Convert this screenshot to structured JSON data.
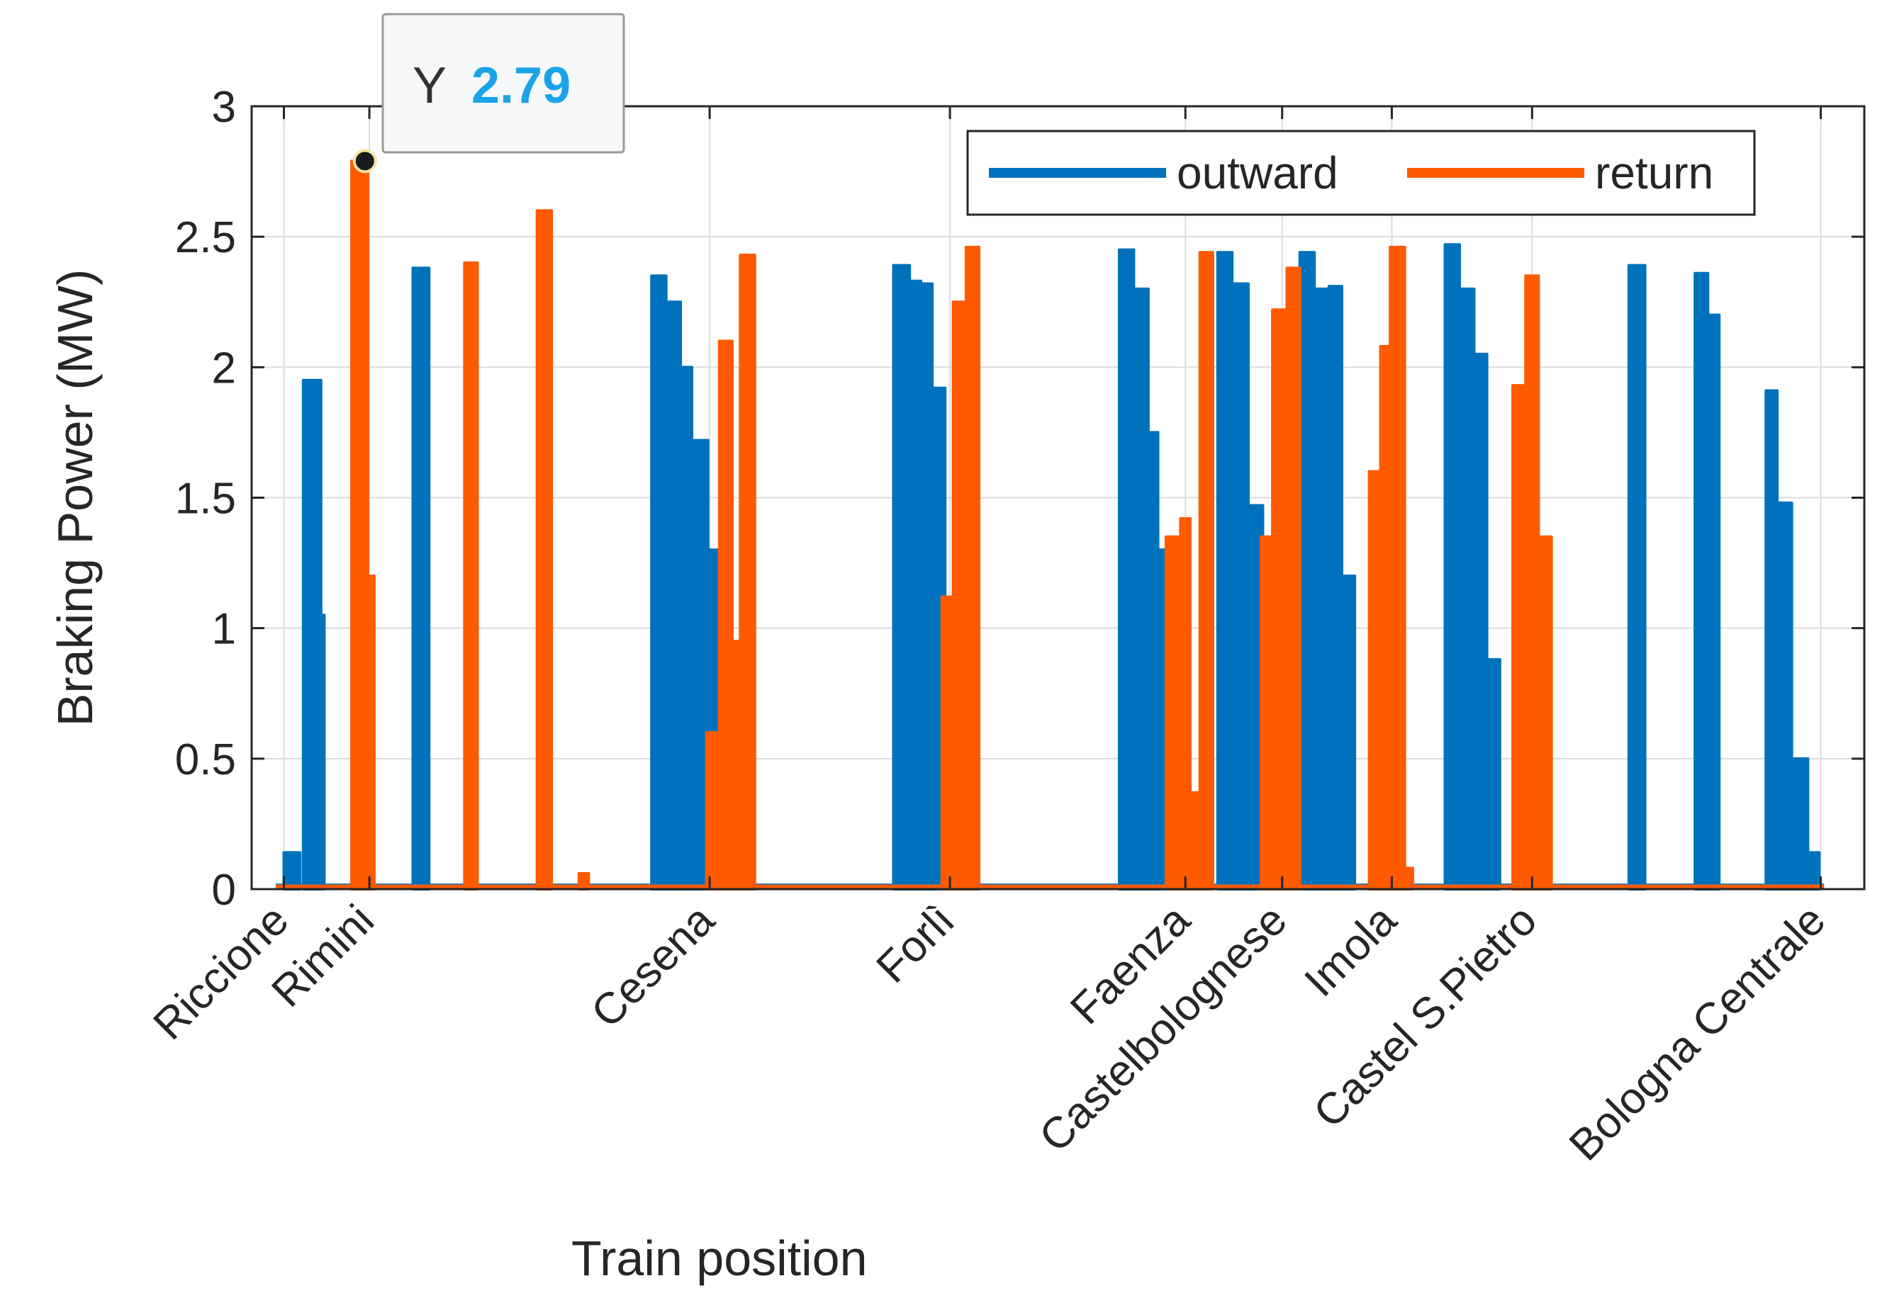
{
  "chart_data": {
    "type": "area",
    "title": "",
    "xlabel": "Train position",
    "ylabel": "Braking Power (MW)",
    "xlim": [
      0,
      100
    ],
    "ylim": [
      0,
      3
    ],
    "yticks": [
      0,
      0.5,
      1,
      1.5,
      2,
      2.5,
      3
    ],
    "ytick_labels": [
      "0",
      "0.5",
      "1",
      "1.5",
      "2",
      "2.5",
      "3"
    ],
    "grid": true,
    "legend_position": "top-right",
    "station_ticks": [
      {
        "label": "Riccione",
        "x": 2
      },
      {
        "label": "Rimini",
        "x": 7.3
      },
      {
        "label": "Cesena",
        "x": 28.4
      },
      {
        "label": "Forlì",
        "x": 43.3
      },
      {
        "label": "Faenza",
        "x": 57.9
      },
      {
        "label": "Castelbolognese",
        "x": 63.9
      },
      {
        "label": "Imola",
        "x": 70.7
      },
      {
        "label": "Castel S.Pietro",
        "x": 79.4
      },
      {
        "label": "Bologna Centrale",
        "x": 97.3
      }
    ],
    "series": [
      {
        "name": "outward",
        "color": "#0072BD",
        "pulses": [
          [
            2,
            3,
            0.14
          ],
          [
            3.2,
            4.3,
            1.95
          ],
          [
            4.3,
            4.5,
            1.05
          ],
          [
            6.2,
            7,
            2.6
          ],
          [
            10,
            11,
            2.38
          ],
          [
            24.8,
            25.7,
            2.35
          ],
          [
            25.7,
            26.6,
            2.25
          ],
          [
            26.6,
            27.3,
            2.0
          ],
          [
            27.3,
            28.3,
            1.72
          ],
          [
            28.3,
            29,
            1.3
          ],
          [
            39.8,
            40.8,
            2.39
          ],
          [
            40.8,
            41.5,
            2.33
          ],
          [
            41.5,
            42.2,
            2.32
          ],
          [
            42.2,
            43,
            1.92
          ],
          [
            53.8,
            54.7,
            2.45
          ],
          [
            54.7,
            55.6,
            2.3
          ],
          [
            55.6,
            56.2,
            1.75
          ],
          [
            56.2,
            57,
            1.3
          ],
          [
            59.9,
            60.8,
            2.44
          ],
          [
            60.8,
            61.8,
            2.32
          ],
          [
            61.8,
            62.7,
            1.47
          ],
          [
            65,
            65.9,
            2.44
          ],
          [
            65.9,
            66.8,
            2.3
          ],
          [
            66.8,
            67.6,
            2.31
          ],
          [
            67.6,
            68.4,
            1.2
          ],
          [
            74,
            74.9,
            2.47
          ],
          [
            74.9,
            75.8,
            2.3
          ],
          [
            75.8,
            76.6,
            2.05
          ],
          [
            76.6,
            77.4,
            0.88
          ],
          [
            85.4,
            86.4,
            2.39
          ],
          [
            89.5,
            90.3,
            2.36
          ],
          [
            90.3,
            91,
            2.2
          ],
          [
            93.9,
            94.6,
            1.91
          ],
          [
            94.6,
            95.5,
            1.48
          ],
          [
            95.5,
            96.5,
            0.5
          ],
          [
            96.5,
            97.2,
            0.14
          ]
        ]
      },
      {
        "name": "return",
        "color": "#FF5A00",
        "pulses": [
          [
            6.2,
            7.2,
            2.79
          ],
          [
            7.2,
            7.6,
            1.2
          ],
          [
            13.2,
            14,
            2.4
          ],
          [
            17.7,
            18.6,
            2.6
          ],
          [
            20.3,
            20.9,
            0.06
          ],
          [
            28.2,
            29,
            0.6
          ],
          [
            29,
            29.8,
            2.1
          ],
          [
            29.8,
            30.3,
            0.95
          ],
          [
            30.3,
            31.2,
            2.43
          ],
          [
            42.8,
            43.5,
            1.12
          ],
          [
            43.5,
            44.3,
            2.25
          ],
          [
            44.3,
            45.1,
            2.46
          ],
          [
            56.7,
            57.6,
            1.35
          ],
          [
            57.6,
            58.2,
            1.42
          ],
          [
            58.2,
            58.8,
            0.37
          ],
          [
            58.8,
            59.6,
            2.44
          ],
          [
            62.6,
            63.3,
            1.35
          ],
          [
            63.3,
            64.2,
            2.22
          ],
          [
            64.2,
            65,
            2.38
          ],
          [
            69.3,
            70,
            1.6
          ],
          [
            70,
            70.6,
            2.08
          ],
          [
            70.6,
            71.5,
            2.46
          ],
          [
            71.5,
            72,
            0.08
          ],
          [
            78.2,
            79,
            1.93
          ],
          [
            79,
            79.8,
            2.35
          ],
          [
            79.8,
            80.6,
            1.35
          ]
        ]
      }
    ],
    "datatip": {
      "label": "Y",
      "value": "2.79",
      "series": "return",
      "x": 7.2,
      "y": 2.79
    }
  }
}
